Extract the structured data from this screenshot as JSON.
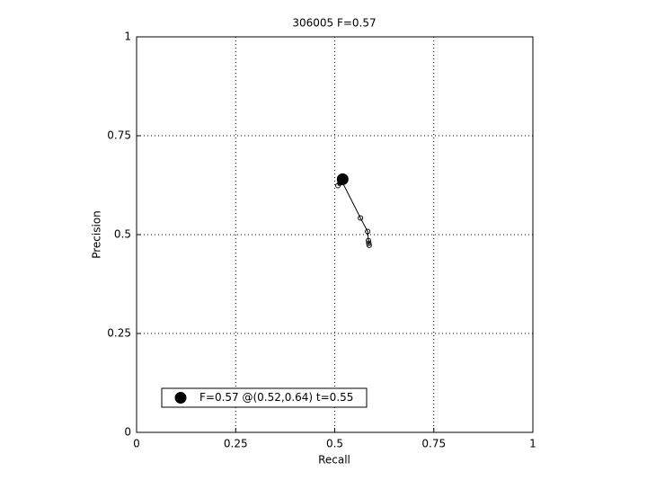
{
  "chart_data": {
    "type": "scatter",
    "title": "306005 F=0.57",
    "x_label": "Recall",
    "y_label": "Precision",
    "xlim": [
      0,
      1
    ],
    "ylim": [
      0,
      1
    ],
    "xticks": [
      0,
      0.25,
      0.5,
      0.75,
      1
    ],
    "yticks": [
      0,
      0.25,
      0.5,
      0.75,
      1
    ],
    "grid": true,
    "legend_position": "lower left",
    "series": [
      {
        "color": "#000000",
        "marker": "open-circle",
        "line": true,
        "x": [
          0.508,
          0.513,
          0.518,
          0.565,
          0.583,
          0.585,
          0.586,
          0.587
        ],
        "values": [
          0.624,
          0.63,
          0.635,
          0.542,
          0.508,
          0.485,
          0.478,
          0.473
        ]
      },
      {
        "name": "F=0.57 @(0.52,0.64) t=0.55",
        "color": "#000000",
        "marker": "filled-circle",
        "line": false,
        "x": [
          0.52
        ],
        "values": [
          0.64
        ]
      }
    ]
  }
}
